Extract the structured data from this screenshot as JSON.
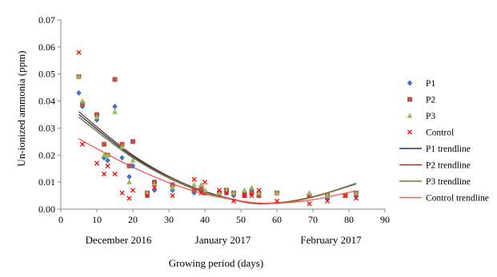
{
  "chart_data": {
    "type": "scatter",
    "xlabel": "Growing period (days)",
    "ylabel": "Un-ionized ammonia (ppm)",
    "xlim": [
      0,
      90
    ],
    "ylim": [
      0,
      0.07
    ],
    "x_ticks": [
      0,
      10,
      20,
      30,
      40,
      50,
      60,
      70,
      80,
      90
    ],
    "y_ticks": [
      "0.00",
      "0.01",
      "0.02",
      "0.03",
      "0.04",
      "0.05",
      "0.06",
      "0.07"
    ],
    "month_labels": [
      {
        "text": "December 2016",
        "x": 16
      },
      {
        "text": "January 2017",
        "x": 45
      },
      {
        "text": "February 2017",
        "x": 75
      }
    ],
    "grid": false,
    "legend": "right",
    "series": [
      {
        "name": "P1",
        "marker": "diamond",
        "color": "#4472c4",
        "x": [
          5,
          6,
          10,
          12,
          13,
          15,
          17,
          19,
          20,
          24,
          26,
          31,
          37,
          39,
          40,
          44,
          46,
          48,
          51,
          53,
          55,
          60,
          69,
          74,
          79,
          82
        ],
        "y": [
          0.043,
          0.038,
          0.033,
          0.019,
          0.018,
          0.038,
          0.019,
          0.012,
          0.016,
          0.005,
          0.007,
          0.007,
          0.006,
          0.008,
          0.006,
          0.006,
          0.006,
          0.005,
          0.006,
          0.007,
          0.006,
          0.006,
          0.005,
          0.004,
          0.005,
          0.005
        ]
      },
      {
        "name": "P2",
        "marker": "square",
        "color": "#c0504d",
        "x": [
          5,
          6,
          10,
          12,
          13,
          15,
          17,
          19,
          20,
          24,
          26,
          31,
          37,
          39,
          40,
          44,
          46,
          48,
          51,
          53,
          55,
          60,
          69,
          74,
          79,
          82
        ],
        "y": [
          0.049,
          0.039,
          0.035,
          0.024,
          0.02,
          0.048,
          0.024,
          0.016,
          0.025,
          0.006,
          0.01,
          0.009,
          0.007,
          0.008,
          0.006,
          0.006,
          0.007,
          0.006,
          0.005,
          0.006,
          0.005,
          0.006,
          0.005,
          0.005,
          0.005,
          0.006
        ]
      },
      {
        "name": "P3",
        "marker": "triangle",
        "color": "#9bbb59",
        "x": [
          5,
          6,
          10,
          12,
          13,
          15,
          17,
          19,
          20,
          24,
          26,
          31,
          37,
          39,
          40,
          44,
          46,
          48,
          51,
          53,
          55,
          60,
          69,
          74,
          79,
          82
        ],
        "y": [
          0.049,
          0.04,
          0.034,
          0.02,
          0.02,
          0.036,
          0.023,
          0.01,
          0.018,
          0.006,
          0.009,
          0.008,
          0.009,
          0.009,
          0.007,
          0.006,
          0.007,
          0.006,
          0.007,
          0.008,
          0.006,
          0.006,
          0.006,
          0.005,
          0.005,
          0.006
        ]
      },
      {
        "name": "Control",
        "marker": "x",
        "color": "#ff0000",
        "x": [
          5,
          6,
          10,
          12,
          13,
          15,
          17,
          19,
          20,
          24,
          26,
          31,
          37,
          39,
          40,
          44,
          46,
          48,
          51,
          53,
          55,
          60,
          69,
          74,
          79,
          82
        ],
        "y": [
          0.058,
          0.024,
          0.017,
          0.013,
          0.016,
          0.013,
          0.006,
          0.004,
          0.007,
          0.005,
          0.008,
          0.005,
          0.011,
          0.006,
          0.01,
          0.007,
          0.006,
          0.003,
          0.005,
          0.005,
          0.007,
          0.003,
          0.002,
          0.003,
          0.005,
          0.004
        ]
      }
    ],
    "trendlines": [
      {
        "name": "P1 trendline",
        "color": "#1f3864",
        "x": [
          5,
          20,
          35,
          50,
          60,
          70,
          82
        ],
        "y": [
          0.035,
          0.0195,
          0.009,
          0.003,
          0.0023,
          0.0045,
          0.0095
        ]
      },
      {
        "name": "P2 trendline",
        "color": "#7f3f3d",
        "x": [
          5,
          20,
          35,
          50,
          60,
          70,
          82
        ],
        "y": [
          0.036,
          0.02,
          0.009,
          0.0028,
          0.0022,
          0.0045,
          0.0093
        ]
      },
      {
        "name": "P3 trendline",
        "color": "#6b7f2a",
        "x": [
          5,
          20,
          35,
          50,
          60,
          70,
          82
        ],
        "y": [
          0.034,
          0.019,
          0.0085,
          0.003,
          0.0024,
          0.0046,
          0.0094
        ]
      },
      {
        "name": "Control trendline",
        "color": "#ff5a5a",
        "x": [
          5,
          20,
          35,
          50,
          60,
          70,
          82
        ],
        "y": [
          0.026,
          0.0155,
          0.0075,
          0.003,
          0.0022,
          0.0035,
          0.0068
        ]
      }
    ]
  }
}
